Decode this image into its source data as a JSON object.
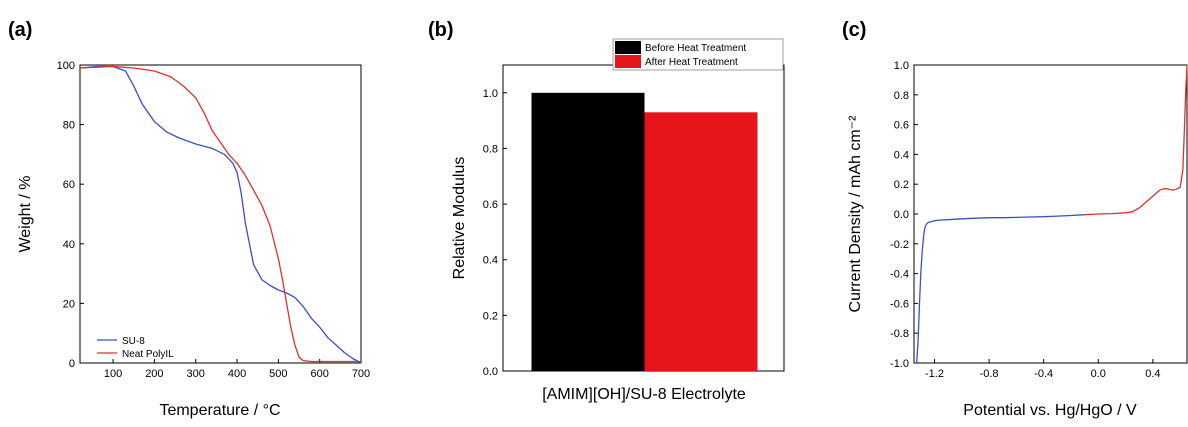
{
  "chart_data": [
    {
      "panel": "(a)",
      "type": "line",
      "xlabel": "Temperature / °C",
      "ylabel": "Weight / %",
      "xlim": [
        20,
        700
      ],
      "ylim": [
        0,
        100
      ],
      "xticks": [
        100,
        200,
        300,
        400,
        500,
        600,
        700
      ],
      "yticks": [
        0,
        20,
        40,
        60,
        80,
        100
      ],
      "grid": false,
      "legend_position": "bottom-left",
      "series": [
        {
          "name": "SU-8",
          "color": "#3b4fc4",
          "x": [
            20,
            60,
            100,
            130,
            150,
            170,
            200,
            230,
            260,
            300,
            340,
            370,
            390,
            400,
            410,
            420,
            440,
            460,
            480,
            500,
            520,
            540,
            560,
            580,
            600,
            620,
            640,
            660,
            680,
            700
          ],
          "y": [
            99,
            99.5,
            99.5,
            98,
            93,
            87,
            81,
            77.5,
            75.5,
            73.5,
            72,
            70,
            67,
            64,
            57,
            47,
            33,
            28,
            26,
            24.5,
            23.5,
            22,
            19,
            15,
            12,
            8.5,
            6,
            3.5,
            1.5,
            0
          ]
        },
        {
          "name": "Neat PolyIL",
          "color": "#e0302e",
          "x": [
            20,
            100,
            150,
            200,
            240,
            270,
            300,
            320,
            340,
            360,
            380,
            400,
            420,
            440,
            460,
            480,
            500,
            510,
            520,
            530,
            540,
            550,
            560,
            580,
            620,
            660,
            700
          ],
          "y": [
            99,
            99.5,
            99,
            98,
            96,
            93,
            89,
            84,
            78,
            74,
            70,
            67,
            63,
            58,
            53,
            46,
            35,
            28,
            20,
            12,
            6,
            2,
            0.8,
            0.5,
            0.5,
            0.5,
            0.5
          ]
        }
      ]
    },
    {
      "panel": "(b)",
      "type": "bar",
      "categories": [
        "[AMIM][OH]/SU-8 Electrolyte"
      ],
      "xlabel": "[AMIM][OH]/SU-8 Electrolyte",
      "ylabel": "Relative Modulus",
      "ylim": [
        0,
        1.1
      ],
      "yticks": [
        "0.0",
        "0.2",
        "0.4",
        "0.6",
        "0.8",
        "1.0"
      ],
      "grid": false,
      "legend_position": "top-right",
      "series": [
        {
          "name": "Before Heat Treatment",
          "color": "#000000",
          "values": [
            1.0
          ]
        },
        {
          "name": "After Heat Treatment",
          "color": "#e8141c",
          "values": [
            0.93
          ]
        }
      ]
    },
    {
      "panel": "(c)",
      "type": "line",
      "xlabel": "Potential vs. Hg/HgO / V",
      "ylabel": "Current Density / mAh cm⁻²",
      "xlim": [
        -1.35,
        0.65
      ],
      "ylim": [
        -1.0,
        1.0
      ],
      "xticks": [
        "-1.2",
        "-0.8",
        "-0.4",
        "0.0",
        "0.4"
      ],
      "yticks": [
        "-1.0",
        "-0.8",
        "-0.6",
        "-0.4",
        "-0.2",
        "0.0",
        "0.2",
        "0.4",
        "0.6",
        "0.8",
        "1.0"
      ],
      "grid": false,
      "series": [
        {
          "color": "#3b4fc4",
          "x": [
            -1.33,
            -1.32,
            -1.31,
            -1.3,
            -1.29,
            -1.28,
            -1.27,
            -1.26,
            -1.25,
            -1.24,
            -1.22,
            -1.2,
            -1.15,
            -1.1,
            -1.0,
            -0.9,
            -0.8,
            -0.7,
            -0.6,
            -0.5,
            -0.4,
            -0.3,
            -0.2,
            -0.1
          ],
          "y": [
            -1.0,
            -0.85,
            -0.6,
            -0.4,
            -0.25,
            -0.15,
            -0.09,
            -0.07,
            -0.06,
            -0.055,
            -0.05,
            -0.045,
            -0.04,
            -0.038,
            -0.032,
            -0.028,
            -0.025,
            -0.025,
            -0.023,
            -0.02,
            -0.018,
            -0.014,
            -0.01,
            -0.005
          ]
        },
        {
          "color": "#e0302e",
          "x": [
            -0.1,
            0.0,
            0.1,
            0.2,
            0.25,
            0.3,
            0.35,
            0.4,
            0.45,
            0.48,
            0.5,
            0.52,
            0.55,
            0.58,
            0.6,
            0.62,
            0.63,
            0.64,
            0.65
          ],
          "y": [
            -0.005,
            0.0,
            0.003,
            0.008,
            0.015,
            0.04,
            0.08,
            0.12,
            0.16,
            0.17,
            0.17,
            0.165,
            0.16,
            0.17,
            0.18,
            0.3,
            0.55,
            0.8,
            1.0
          ]
        }
      ]
    }
  ]
}
